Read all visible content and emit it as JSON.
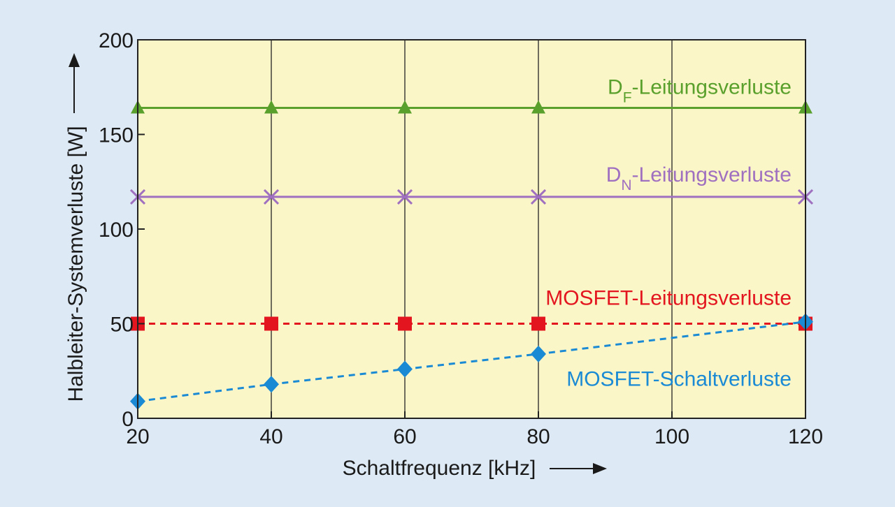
{
  "colors": {
    "background": "#dde9f4",
    "plot_area": "#fbf6c8",
    "axis": "#222222",
    "grid": "#222222"
  },
  "chart_data": {
    "type": "line",
    "title": "",
    "xlabel": "Schaltfrequenz [kHz]",
    "ylabel": "Halbleiter-Systemverluste [W]",
    "x_ticks": [
      20,
      40,
      60,
      80,
      100,
      120
    ],
    "y_ticks": [
      0,
      50,
      100,
      150,
      200
    ],
    "xlim": [
      20,
      120
    ],
    "ylim": [
      0,
      200
    ],
    "grid": "vertical",
    "x": [
      20,
      40,
      60,
      80,
      120
    ],
    "series": [
      {
        "name": "D_F-Leitungsverluste",
        "label_main": "D",
        "label_sub": "F",
        "label_rest": "-Leitungsverluste",
        "values": [
          164,
          164,
          164,
          164,
          164
        ],
        "color": "#5aa02c",
        "marker": "triangle",
        "line": "solid"
      },
      {
        "name": "D_N-Leitungsverluste",
        "label_main": "D",
        "label_sub": "N",
        "label_rest": "-Leitungsverluste",
        "values": [
          117,
          117,
          117,
          117,
          117
        ],
        "color": "#a070c0",
        "marker": "x",
        "line": "solid"
      },
      {
        "name": "MOSFET-Leitungsverluste",
        "label_main": "MOSFET-Leitungsverluste",
        "label_sub": "",
        "label_rest": "",
        "values": [
          50,
          50,
          50,
          50,
          50
        ],
        "color": "#e3151e",
        "marker": "square",
        "line": "dashed"
      },
      {
        "name": "MOSFET-Schaltverluste",
        "label_main": "MOSFET-Schaltverluste",
        "label_sub": "",
        "label_rest": "",
        "values": [
          9,
          18,
          26,
          34,
          51
        ],
        "color": "#1a8ad4",
        "marker": "diamond",
        "line": "dashed"
      }
    ]
  }
}
